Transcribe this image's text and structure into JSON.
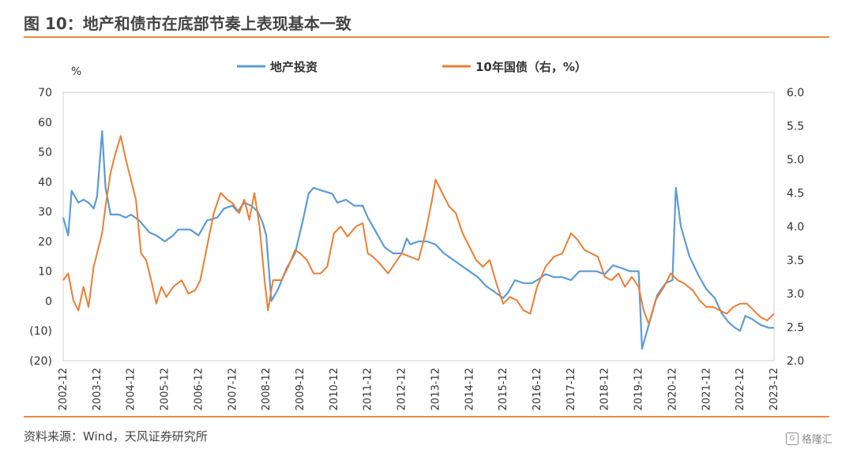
{
  "header": {
    "title": "图 10：地产和债市在底部节奏上表现基本一致"
  },
  "footer": {
    "source": "资料来源：Wind，天风证券研究所",
    "watermark": "格隆汇"
  },
  "chart_data": {
    "type": "line",
    "left_unit": "%",
    "x": [
      "2002-12",
      "2003-12",
      "2004-12",
      "2005-12",
      "2006-12",
      "2007-12",
      "2008-12",
      "2009-12",
      "2010-12",
      "2011-12",
      "2012-12",
      "2013-12",
      "2014-12",
      "2015-12",
      "2016-12",
      "2017-12",
      "2018-12",
      "2019-12",
      "2020-12",
      "2021-12",
      "2022-12",
      "2023-12"
    ],
    "ylim_left": [
      -20,
      70
    ],
    "yticks_left": [
      "70",
      "60",
      "50",
      "40",
      "30",
      "20",
      "10",
      "0",
      "(10)",
      "(20)"
    ],
    "ylim_right": [
      2.0,
      6.0
    ],
    "yticks_right": [
      "6.0",
      "5.5",
      "5.0",
      "4.5",
      "4.0",
      "3.5",
      "3.0",
      "2.5",
      "2.0"
    ],
    "legend_position": "top",
    "grid": false,
    "series": [
      {
        "name": "地产投资",
        "axis": "left",
        "color": "#5b9bd5",
        "points": [
          [
            2002.95,
            28
          ],
          [
            2003.1,
            22
          ],
          [
            2003.2,
            37
          ],
          [
            2003.4,
            33
          ],
          [
            2003.55,
            34
          ],
          [
            2003.7,
            33
          ],
          [
            2003.85,
            31
          ],
          [
            2003.95,
            35
          ],
          [
            2004.1,
            57
          ],
          [
            2004.2,
            38
          ],
          [
            2004.35,
            29
          ],
          [
            2004.6,
            29
          ],
          [
            2004.8,
            28
          ],
          [
            2004.95,
            29
          ],
          [
            2005.2,
            27
          ],
          [
            2005.5,
            23
          ],
          [
            2005.7,
            22
          ],
          [
            2005.95,
            20
          ],
          [
            2006.2,
            22
          ],
          [
            2006.35,
            24
          ],
          [
            2006.7,
            24
          ],
          [
            2006.95,
            22
          ],
          [
            2007.2,
            27
          ],
          [
            2007.5,
            28
          ],
          [
            2007.7,
            31
          ],
          [
            2007.95,
            32
          ],
          [
            2008.1,
            30
          ],
          [
            2008.3,
            33
          ],
          [
            2008.5,
            32
          ],
          [
            2008.7,
            30
          ],
          [
            2008.85,
            26
          ],
          [
            2008.95,
            22
          ],
          [
            2009.1,
            0
          ],
          [
            2009.3,
            4
          ],
          [
            2009.55,
            11
          ],
          [
            2009.8,
            16
          ],
          [
            2010.05,
            28
          ],
          [
            2010.2,
            36
          ],
          [
            2010.35,
            38
          ],
          [
            2010.6,
            37
          ],
          [
            2010.9,
            36
          ],
          [
            2011.05,
            33
          ],
          [
            2011.3,
            34
          ],
          [
            2011.55,
            32
          ],
          [
            2011.8,
            32
          ],
          [
            2011.95,
            28
          ],
          [
            2012.2,
            23
          ],
          [
            2012.45,
            18
          ],
          [
            2012.7,
            16
          ],
          [
            2012.95,
            16
          ],
          [
            2013.1,
            21
          ],
          [
            2013.2,
            19
          ],
          [
            2013.45,
            20
          ],
          [
            2013.7,
            20
          ],
          [
            2013.95,
            19
          ],
          [
            2014.2,
            16
          ],
          [
            2014.45,
            14
          ],
          [
            2014.7,
            12
          ],
          [
            2014.95,
            10
          ],
          [
            2015.2,
            8
          ],
          [
            2015.45,
            5
          ],
          [
            2015.7,
            3
          ],
          [
            2015.95,
            1
          ],
          [
            2016.1,
            3
          ],
          [
            2016.3,
            7
          ],
          [
            2016.55,
            6
          ],
          [
            2016.8,
            6
          ],
          [
            2016.95,
            7
          ],
          [
            2017.2,
            9
          ],
          [
            2017.45,
            8
          ],
          [
            2017.7,
            8
          ],
          [
            2017.95,
            7
          ],
          [
            2018.2,
            10
          ],
          [
            2018.45,
            10
          ],
          [
            2018.7,
            10
          ],
          [
            2018.95,
            9
          ],
          [
            2019.2,
            12
          ],
          [
            2019.45,
            11
          ],
          [
            2019.7,
            10
          ],
          [
            2019.95,
            10
          ],
          [
            2020.05,
            -16
          ],
          [
            2020.25,
            -8
          ],
          [
            2020.5,
            2
          ],
          [
            2020.75,
            6
          ],
          [
            2020.95,
            7
          ],
          [
            2021.05,
            38
          ],
          [
            2021.2,
            25
          ],
          [
            2021.45,
            15
          ],
          [
            2021.7,
            9
          ],
          [
            2021.95,
            4
          ],
          [
            2022.2,
            1
          ],
          [
            2022.4,
            -4
          ],
          [
            2022.6,
            -7
          ],
          [
            2022.8,
            -9
          ],
          [
            2022.95,
            -10
          ],
          [
            2023.1,
            -5
          ],
          [
            2023.3,
            -6
          ],
          [
            2023.55,
            -8
          ],
          [
            2023.8,
            -9
          ],
          [
            2023.95,
            -9
          ]
        ]
      },
      {
        "name": "10年国债（右，%）",
        "axis": "right",
        "color": "#ed7d31",
        "points": [
          [
            2002.95,
            3.2
          ],
          [
            2003.1,
            3.3
          ],
          [
            2003.25,
            2.9
          ],
          [
            2003.4,
            2.75
          ],
          [
            2003.55,
            3.1
          ],
          [
            2003.7,
            2.8
          ],
          [
            2003.85,
            3.4
          ],
          [
            2003.95,
            3.6
          ],
          [
            2004.1,
            3.9
          ],
          [
            2004.2,
            4.3
          ],
          [
            2004.35,
            4.8
          ],
          [
            2004.5,
            5.1
          ],
          [
            2004.65,
            5.35
          ],
          [
            2004.8,
            5.0
          ],
          [
            2004.95,
            4.7
          ],
          [
            2005.1,
            4.4
          ],
          [
            2005.25,
            3.6
          ],
          [
            2005.4,
            3.5
          ],
          [
            2005.55,
            3.2
          ],
          [
            2005.7,
            2.85
          ],
          [
            2005.85,
            3.1
          ],
          [
            2006.0,
            2.95
          ],
          [
            2006.2,
            3.1
          ],
          [
            2006.45,
            3.2
          ],
          [
            2006.65,
            3.0
          ],
          [
            2006.85,
            3.05
          ],
          [
            2007.0,
            3.2
          ],
          [
            2007.2,
            3.7
          ],
          [
            2007.4,
            4.2
          ],
          [
            2007.6,
            4.5
          ],
          [
            2007.8,
            4.4
          ],
          [
            2007.95,
            4.35
          ],
          [
            2008.15,
            4.2
          ],
          [
            2008.3,
            4.4
          ],
          [
            2008.45,
            4.1
          ],
          [
            2008.6,
            4.5
          ],
          [
            2008.75,
            4.0
          ],
          [
            2008.9,
            3.2
          ],
          [
            2009.0,
            2.75
          ],
          [
            2009.15,
            3.2
          ],
          [
            2009.4,
            3.2
          ],
          [
            2009.6,
            3.4
          ],
          [
            2009.8,
            3.65
          ],
          [
            2009.95,
            3.6
          ],
          [
            2010.15,
            3.5
          ],
          [
            2010.35,
            3.3
          ],
          [
            2010.55,
            3.3
          ],
          [
            2010.75,
            3.4
          ],
          [
            2010.95,
            3.9
          ],
          [
            2011.15,
            4.0
          ],
          [
            2011.35,
            3.85
          ],
          [
            2011.6,
            4.0
          ],
          [
            2011.8,
            4.05
          ],
          [
            2011.95,
            3.6
          ],
          [
            2012.1,
            3.55
          ],
          [
            2012.3,
            3.45
          ],
          [
            2012.55,
            3.3
          ],
          [
            2012.75,
            3.45
          ],
          [
            2012.95,
            3.6
          ],
          [
            2013.2,
            3.55
          ],
          [
            2013.45,
            3.5
          ],
          [
            2013.65,
            3.9
          ],
          [
            2013.85,
            4.4
          ],
          [
            2013.95,
            4.7
          ],
          [
            2014.15,
            4.5
          ],
          [
            2014.35,
            4.3
          ],
          [
            2014.55,
            4.2
          ],
          [
            2014.75,
            3.9
          ],
          [
            2014.95,
            3.7
          ],
          [
            2015.15,
            3.5
          ],
          [
            2015.35,
            3.4
          ],
          [
            2015.55,
            3.5
          ],
          [
            2015.75,
            3.15
          ],
          [
            2015.95,
            2.85
          ],
          [
            2016.15,
            2.95
          ],
          [
            2016.35,
            2.9
          ],
          [
            2016.55,
            2.75
          ],
          [
            2016.75,
            2.7
          ],
          [
            2016.95,
            3.1
          ],
          [
            2017.2,
            3.4
          ],
          [
            2017.45,
            3.55
          ],
          [
            2017.7,
            3.6
          ],
          [
            2017.95,
            3.9
          ],
          [
            2018.15,
            3.8
          ],
          [
            2018.35,
            3.65
          ],
          [
            2018.55,
            3.6
          ],
          [
            2018.75,
            3.55
          ],
          [
            2018.95,
            3.25
          ],
          [
            2019.15,
            3.2
          ],
          [
            2019.35,
            3.3
          ],
          [
            2019.55,
            3.1
          ],
          [
            2019.75,
            3.25
          ],
          [
            2019.95,
            3.1
          ],
          [
            2020.1,
            2.75
          ],
          [
            2020.25,
            2.55
          ],
          [
            2020.45,
            2.9
          ],
          [
            2020.7,
            3.1
          ],
          [
            2020.9,
            3.3
          ],
          [
            2021.1,
            3.2
          ],
          [
            2021.3,
            3.15
          ],
          [
            2021.55,
            3.05
          ],
          [
            2021.75,
            2.9
          ],
          [
            2021.95,
            2.8
          ],
          [
            2022.15,
            2.8
          ],
          [
            2022.35,
            2.75
          ],
          [
            2022.55,
            2.7
          ],
          [
            2022.75,
            2.8
          ],
          [
            2022.95,
            2.85
          ],
          [
            2023.15,
            2.85
          ],
          [
            2023.35,
            2.75
          ],
          [
            2023.55,
            2.65
          ],
          [
            2023.75,
            2.6
          ],
          [
            2023.95,
            2.7
          ]
        ]
      }
    ]
  }
}
